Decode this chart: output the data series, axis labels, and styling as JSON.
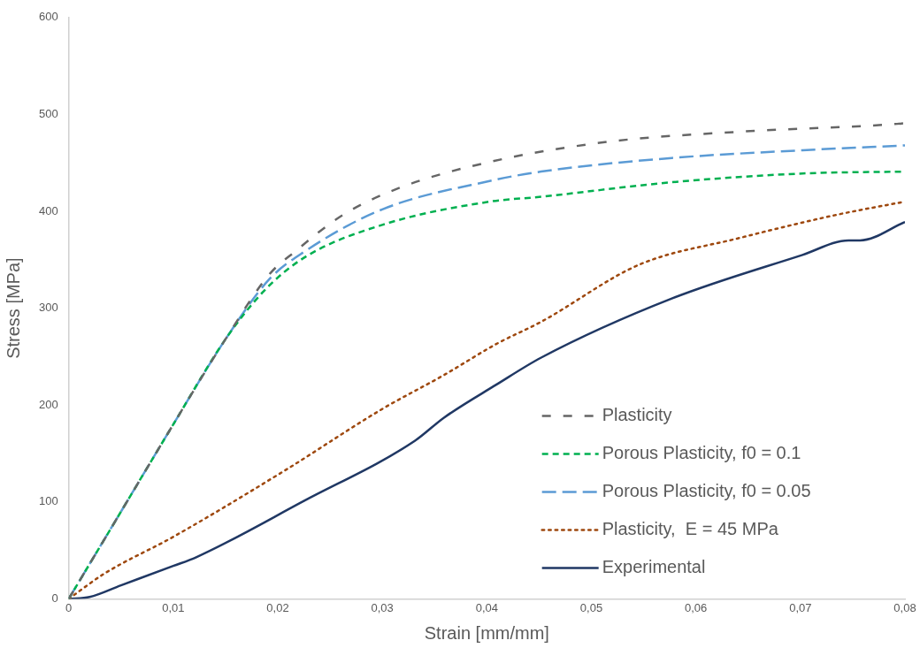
{
  "chart_data": {
    "type": "line",
    "xlabel": "Strain [mm/mm]",
    "ylabel": "Stress [MPa]",
    "xlim": [
      0,
      0.08
    ],
    "ylim": [
      0,
      600
    ],
    "xticks": [
      0,
      {
        "value": 0.01,
        "label": "0,01"
      },
      {
        "value": 0.02,
        "label": "0,02"
      },
      {
        "value": 0.03,
        "label": "0,03"
      },
      {
        "value": 0.04,
        "label": "0,04"
      },
      {
        "value": 0.05,
        "label": "0,05"
      },
      {
        "value": 0.06,
        "label": "0,06"
      },
      {
        "value": 0.07,
        "label": "0,07"
      },
      {
        "value": 0.08,
        "label": "0,08"
      }
    ],
    "yticks": [
      0,
      100,
      200,
      300,
      400,
      500,
      600
    ],
    "grid": false,
    "legend": "bottom right",
    "marker": "none",
    "series": [
      {
        "name": "Plasticity",
        "color": "#666666",
        "line_style": "dashed",
        "x": [
          0,
          0.005,
          0.01,
          0.015,
          0.0192,
          0.0216,
          0.0262,
          0.0316,
          0.0403,
          0.0518,
          0.064,
          0.079,
          0.08
        ],
        "values": [
          0,
          90,
          180,
          268,
          335,
          358,
          396,
          424,
          451,
          472,
          482,
          490,
          491
        ]
      },
      {
        "name": "Porous Plasticity, f0 = 0.1",
        "color": "#00b050",
        "line_style": "dashed",
        "x": [
          0,
          0.005,
          0.01,
          0.015,
          0.0187,
          0.0225,
          0.03,
          0.0403,
          0.0452,
          0.0577,
          0.0702,
          0.08
        ],
        "values": [
          0,
          90,
          180,
          268,
          318,
          352,
          386,
          410,
          415,
          430,
          439,
          441
        ]
      },
      {
        "name": "Porous Plasticity, f0 = 0.05",
        "color": "#5b9bd5",
        "line_style": "dashed",
        "x": [
          0,
          0.005,
          0.01,
          0.015,
          0.0192,
          0.0225,
          0.03,
          0.0406,
          0.0452,
          0.0577,
          0.0702,
          0.08
        ],
        "values": [
          0,
          90,
          180,
          268,
          330,
          358,
          402,
          432,
          441,
          455,
          463,
          468
        ]
      },
      {
        "name": "Plasticity,  E = 45 MPa",
        "color": "#9e480e",
        "line_style": "dotted",
        "x": [
          0,
          0.0034,
          0.01,
          0.0206,
          0.03,
          0.0359,
          0.0409,
          0.0452,
          0.0546,
          0.064,
          0.0733,
          0.08
        ],
        "values": [
          0,
          26,
          64,
          132,
          196,
          231,
          263,
          286,
          345,
          372,
          396,
          410
        ]
      },
      {
        "name": "Experimental",
        "color": "#203864",
        "line_style": "solid",
        "x": [
          0,
          0.002,
          0.005,
          0.01,
          0.0122,
          0.0225,
          0.0331,
          0.0359,
          0.0409,
          0.0452,
          0.0577,
          0.0702,
          0.0746,
          0.0757,
          0.08
        ],
        "values": [
          0,
          2,
          14,
          34,
          43,
          101,
          163,
          187,
          221,
          249,
          310,
          355,
          370,
          370,
          389
        ]
      }
    ]
  }
}
